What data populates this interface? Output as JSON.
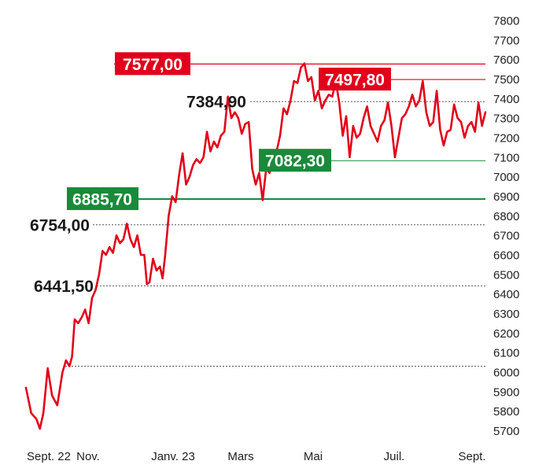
{
  "chart_data": {
    "type": "line",
    "title": "",
    "xlabel": "",
    "ylabel": "",
    "ylim": [
      5700,
      7800
    ],
    "y_ticks": [
      5700,
      5800,
      5900,
      6000,
      6100,
      6200,
      6300,
      6400,
      6500,
      6600,
      6700,
      6800,
      6900,
      7000,
      7100,
      7200,
      7300,
      7400,
      7500,
      7600,
      7700,
      7800
    ],
    "x_tick_labels": [
      "Sept. 22",
      "Nov.",
      "Janv. 23",
      "Mars",
      "Mai",
      "Juil.",
      "Sept."
    ],
    "grid": false,
    "colors": {
      "series": "#e2001a",
      "support": "#1a8a3a",
      "resistance": "#e2001a",
      "reference": "#555555"
    },
    "levels": [
      {
        "value": 7577.0,
        "label": "7577,00",
        "style": "resistance-box"
      },
      {
        "value": 7497.8,
        "label": "7497,80",
        "style": "resistance-box"
      },
      {
        "value": 7384.9,
        "label": "7384,90",
        "style": "plain"
      },
      {
        "value": 7082.3,
        "label": "7082,30",
        "style": "support-box"
      },
      {
        "value": 6885.7,
        "label": "6885,70",
        "style": "support-box"
      },
      {
        "value": 6754.0,
        "label": "6754,00",
        "style": "plain"
      },
      {
        "value": 6441.5,
        "label": "6441,50",
        "style": "plain"
      },
      {
        "value": 6030.0,
        "label": "",
        "style": "dashed"
      }
    ],
    "series": [
      {
        "values": [
          [
            0,
            5920
          ],
          [
            0.6,
            5790
          ],
          [
            1.2,
            5760
          ],
          [
            1.6,
            5710
          ],
          [
            2.0,
            5790
          ],
          [
            2.5,
            6020
          ],
          [
            3.0,
            5880
          ],
          [
            3.6,
            5830
          ],
          [
            4.2,
            6000
          ],
          [
            4.6,
            6060
          ],
          [
            5.0,
            6030
          ],
          [
            5.3,
            6080
          ],
          [
            5.6,
            6270
          ],
          [
            6.0,
            6250
          ],
          [
            6.4,
            6280
          ],
          [
            6.8,
            6320
          ],
          [
            7.2,
            6250
          ],
          [
            7.6,
            6380
          ],
          [
            8.0,
            6420
          ],
          [
            8.4,
            6500
          ],
          [
            8.8,
            6620
          ],
          [
            9.2,
            6600
          ],
          [
            9.6,
            6640
          ],
          [
            10.0,
            6610
          ],
          [
            10.4,
            6700
          ],
          [
            10.8,
            6660
          ],
          [
            11.2,
            6680
          ],
          [
            11.6,
            6760
          ],
          [
            12.0,
            6680
          ],
          [
            12.4,
            6640
          ],
          [
            12.8,
            6700
          ],
          [
            13.2,
            6600
          ],
          [
            13.6,
            6600
          ],
          [
            13.9,
            6450
          ],
          [
            14.2,
            6460
          ],
          [
            14.6,
            6580
          ],
          [
            15.0,
            6520
          ],
          [
            15.4,
            6540
          ],
          [
            15.7,
            6480
          ],
          [
            16.0,
            6600
          ],
          [
            16.4,
            6800
          ],
          [
            16.8,
            6900
          ],
          [
            17.2,
            6870
          ],
          [
            17.6,
            7010
          ],
          [
            18.0,
            7120
          ],
          [
            18.4,
            6960
          ],
          [
            18.8,
            7000
          ],
          [
            19.2,
            7060
          ],
          [
            19.6,
            7090
          ],
          [
            20.0,
            7070
          ],
          [
            20.4,
            7100
          ],
          [
            20.8,
            7230
          ],
          [
            21.2,
            7130
          ],
          [
            21.6,
            7180
          ],
          [
            22.0,
            7150
          ],
          [
            22.4,
            7210
          ],
          [
            22.8,
            7230
          ],
          [
            23.2,
            7410
          ],
          [
            23.6,
            7300
          ],
          [
            24.0,
            7330
          ],
          [
            24.4,
            7300
          ],
          [
            24.8,
            7220
          ],
          [
            25.2,
            7270
          ],
          [
            25.6,
            7280
          ],
          [
            26.0,
            7040
          ],
          [
            26.4,
            6960
          ],
          [
            26.8,
            7020
          ],
          [
            27.2,
            6880
          ],
          [
            27.6,
            7040
          ],
          [
            28.0,
            7020
          ],
          [
            28.4,
            7100
          ],
          [
            28.8,
            7130
          ],
          [
            29.2,
            7210
          ],
          [
            29.6,
            7350
          ],
          [
            30.0,
            7320
          ],
          [
            30.4,
            7390
          ],
          [
            30.8,
            7490
          ],
          [
            31.2,
            7480
          ],
          [
            31.6,
            7560
          ],
          [
            32.0,
            7580
          ],
          [
            32.4,
            7490
          ],
          [
            32.8,
            7510
          ],
          [
            33.2,
            7390
          ],
          [
            33.6,
            7440
          ],
          [
            34.0,
            7350
          ],
          [
            34.4,
            7390
          ],
          [
            34.8,
            7420
          ],
          [
            35.2,
            7410
          ],
          [
            35.6,
            7490
          ],
          [
            36.0,
            7380
          ],
          [
            36.4,
            7210
          ],
          [
            36.8,
            7310
          ],
          [
            37.2,
            7100
          ],
          [
            37.6,
            7260
          ],
          [
            38.0,
            7200
          ],
          [
            38.4,
            7220
          ],
          [
            38.8,
            7300
          ],
          [
            39.2,
            7360
          ],
          [
            39.6,
            7260
          ],
          [
            40.0,
            7220
          ],
          [
            40.4,
            7180
          ],
          [
            40.8,
            7260
          ],
          [
            41.2,
            7290
          ],
          [
            41.6,
            7380
          ],
          [
            42.0,
            7260
          ],
          [
            42.4,
            7100
          ],
          [
            42.8,
            7200
          ],
          [
            43.2,
            7300
          ],
          [
            43.6,
            7320
          ],
          [
            44.0,
            7360
          ],
          [
            44.4,
            7420
          ],
          [
            44.8,
            7360
          ],
          [
            45.2,
            7390
          ],
          [
            45.6,
            7490
          ],
          [
            46.0,
            7330
          ],
          [
            46.4,
            7260
          ],
          [
            46.8,
            7280
          ],
          [
            47.2,
            7440
          ],
          [
            47.6,
            7240
          ],
          [
            48.0,
            7160
          ],
          [
            48.4,
            7230
          ],
          [
            48.8,
            7240
          ],
          [
            49.2,
            7370
          ],
          [
            49.6,
            7300
          ],
          [
            50.0,
            7280
          ],
          [
            50.4,
            7200
          ],
          [
            50.8,
            7260
          ],
          [
            51.2,
            7280
          ],
          [
            51.6,
            7230
          ],
          [
            52.0,
            7380
          ],
          [
            52.4,
            7260
          ],
          [
            52.8,
            7330
          ]
        ]
      }
    ]
  }
}
